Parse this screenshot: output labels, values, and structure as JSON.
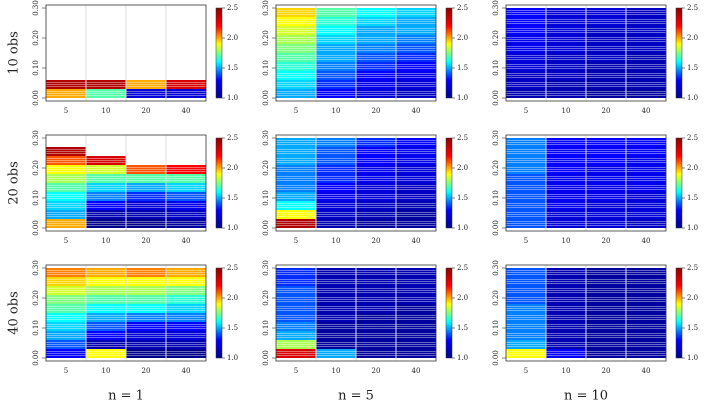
{
  "axes": {
    "categories": [
      "5",
      "10",
      "20",
      "40"
    ],
    "bins": [
      0,
      0.03,
      0.06,
      0.09,
      0.12,
      0.15,
      0.18,
      0.21,
      0.24,
      0.27,
      0.3
    ],
    "ylim": [
      -0.01,
      0.31
    ],
    "yticks": [
      {
        "value": 0,
        "label": "0.00"
      },
      {
        "value": 0.1,
        "label": "0.10"
      },
      {
        "value": 0.2,
        "label": "0.20"
      },
      {
        "value": 0.3,
        "label": "0.30"
      }
    ],
    "zlim": [
      1.0,
      2.5
    ],
    "zticks": [
      {
        "value": 1,
        "label": "1.0"
      },
      1.5,
      {
        "value": 2,
        "label": "2.0"
      },
      2.5
    ],
    "colors": [
      "#00008b",
      "#0000ff",
      "#00ffff",
      "#ffff00",
      "#ff0000",
      "#8b0000"
    ],
    "row_labels": [
      "10 obs",
      "20 obs",
      "40 obs"
    ],
    "col_labels": [
      "n = 1",
      "n = 5",
      "n = 10"
    ]
  },
  "chart_data": [
    {
      "type": "heatmap",
      "values": [
        [
          2.0,
          2.4,
          null,
          null,
          null,
          null,
          null,
          null,
          null,
          null
        ],
        [
          1.7,
          2.4,
          null,
          null,
          null,
          null,
          null,
          null,
          null,
          null
        ],
        [
          1.2,
          2.0,
          null,
          null,
          null,
          null,
          null,
          null,
          null,
          null
        ],
        [
          1.2,
          2.3,
          null,
          null,
          null,
          null,
          null,
          null,
          null,
          null
        ]
      ]
    },
    {
      "type": "heatmap",
      "values": [
        [
          1.5,
          1.55,
          1.6,
          1.65,
          1.7,
          1.75,
          1.8,
          1.85,
          1.9,
          1.95
        ],
        [
          1.3,
          1.35,
          1.4,
          1.45,
          1.5,
          1.5,
          1.55,
          1.6,
          1.65,
          1.7
        ],
        [
          1.2,
          1.25,
          1.3,
          1.35,
          1.4,
          1.45,
          1.5,
          1.5,
          1.55,
          1.6
        ],
        [
          1.15,
          1.2,
          1.25,
          1.3,
          1.35,
          1.4,
          1.45,
          1.5,
          1.5,
          1.55
        ]
      ]
    },
    {
      "type": "heatmap",
      "values": [
        [
          1.1,
          1.15,
          1.15,
          1.2,
          1.2,
          1.25,
          1.25,
          1.3,
          1.3,
          1.3
        ],
        [
          1.1,
          1.1,
          1.15,
          1.15,
          1.15,
          1.2,
          1.2,
          1.2,
          1.2,
          1.2
        ],
        [
          1.05,
          1.1,
          1.1,
          1.1,
          1.15,
          1.15,
          1.15,
          1.15,
          1.2,
          1.2
        ],
        [
          1.05,
          1.1,
          1.1,
          1.1,
          1.1,
          1.15,
          1.15,
          1.15,
          1.15,
          1.15
        ]
      ]
    },
    {
      "type": "heatmap",
      "values": [
        [
          2.0,
          1.5,
          1.55,
          1.6,
          1.7,
          1.8,
          1.9,
          2.1,
          2.4,
          null
        ],
        [
          1.0,
          1.1,
          1.3,
          1.45,
          1.55,
          1.7,
          1.85,
          2.3,
          null,
          null
        ],
        [
          1.0,
          1.1,
          1.2,
          1.35,
          1.5,
          1.7,
          2.1,
          null,
          null,
          null
        ],
        [
          1.05,
          1.15,
          1.25,
          1.4,
          1.55,
          1.7,
          2.2,
          null,
          null,
          null
        ]
      ]
    },
    {
      "type": "heatmap",
      "values": [
        [
          2.4,
          1.9,
          1.6,
          1.5,
          1.45,
          1.45,
          1.45,
          1.5,
          1.5,
          1.5
        ],
        [
          1.1,
          1.15,
          1.2,
          1.25,
          1.3,
          1.35,
          1.35,
          1.4,
          1.4,
          1.45
        ],
        [
          1.05,
          1.1,
          1.15,
          1.2,
          1.2,
          1.25,
          1.25,
          1.3,
          1.3,
          1.35
        ],
        [
          1.05,
          1.05,
          1.1,
          1.15,
          1.15,
          1.2,
          1.2,
          1.25,
          1.25,
          1.3
        ]
      ]
    },
    {
      "type": "heatmap",
      "values": [
        [
          1.4,
          1.4,
          1.4,
          1.4,
          1.4,
          1.4,
          1.45,
          1.45,
          1.45,
          1.45
        ],
        [
          1.2,
          1.2,
          1.25,
          1.25,
          1.25,
          1.25,
          1.3,
          1.3,
          1.3,
          1.3
        ],
        [
          1.2,
          1.2,
          1.2,
          1.25,
          1.25,
          1.25,
          1.25,
          1.3,
          1.3,
          1.3
        ],
        [
          1.15,
          1.2,
          1.2,
          1.2,
          1.25,
          1.25,
          1.25,
          1.25,
          1.3,
          1.3
        ]
      ]
    },
    {
      "type": "heatmap",
      "values": [
        [
          1.3,
          1.4,
          1.5,
          1.55,
          1.6,
          1.7,
          1.75,
          1.85,
          1.95,
          2.05
        ],
        [
          1.9,
          1.1,
          1.3,
          1.4,
          1.5,
          1.6,
          1.7,
          1.8,
          1.9,
          2.0
        ],
        [
          1.0,
          1.1,
          1.2,
          1.3,
          1.45,
          1.6,
          1.7,
          1.8,
          1.9,
          2.05
        ],
        [
          1.0,
          1.1,
          1.2,
          1.3,
          1.45,
          1.55,
          1.65,
          1.75,
          1.9,
          2.0
        ]
      ]
    },
    {
      "type": "heatmap",
      "values": [
        [
          2.3,
          1.8,
          1.5,
          1.45,
          1.4,
          1.4,
          1.4,
          1.4,
          1.35,
          1.35
        ],
        [
          1.5,
          1.05,
          1.05,
          1.05,
          1.1,
          1.1,
          1.1,
          1.1,
          1.1,
          1.1
        ],
        [
          1.05,
          1.05,
          1.05,
          1.05,
          1.05,
          1.1,
          1.1,
          1.1,
          1.1,
          1.1
        ],
        [
          1.05,
          1.05,
          1.05,
          1.05,
          1.05,
          1.05,
          1.1,
          1.1,
          1.1,
          1.1
        ]
      ]
    },
    {
      "type": "heatmap",
      "values": [
        [
          1.9,
          1.5,
          1.45,
          1.45,
          1.45,
          1.45,
          1.4,
          1.4,
          1.4,
          1.4
        ],
        [
          1.3,
          1.1,
          1.1,
          1.1,
          1.1,
          1.1,
          1.1,
          1.1,
          1.1,
          1.1
        ],
        [
          1.05,
          1.05,
          1.05,
          1.05,
          1.05,
          1.05,
          1.05,
          1.05,
          1.05,
          1.05
        ],
        [
          1.05,
          1.05,
          1.05,
          1.05,
          1.05,
          1.05,
          1.05,
          1.05,
          1.05,
          1.05
        ]
      ]
    }
  ]
}
